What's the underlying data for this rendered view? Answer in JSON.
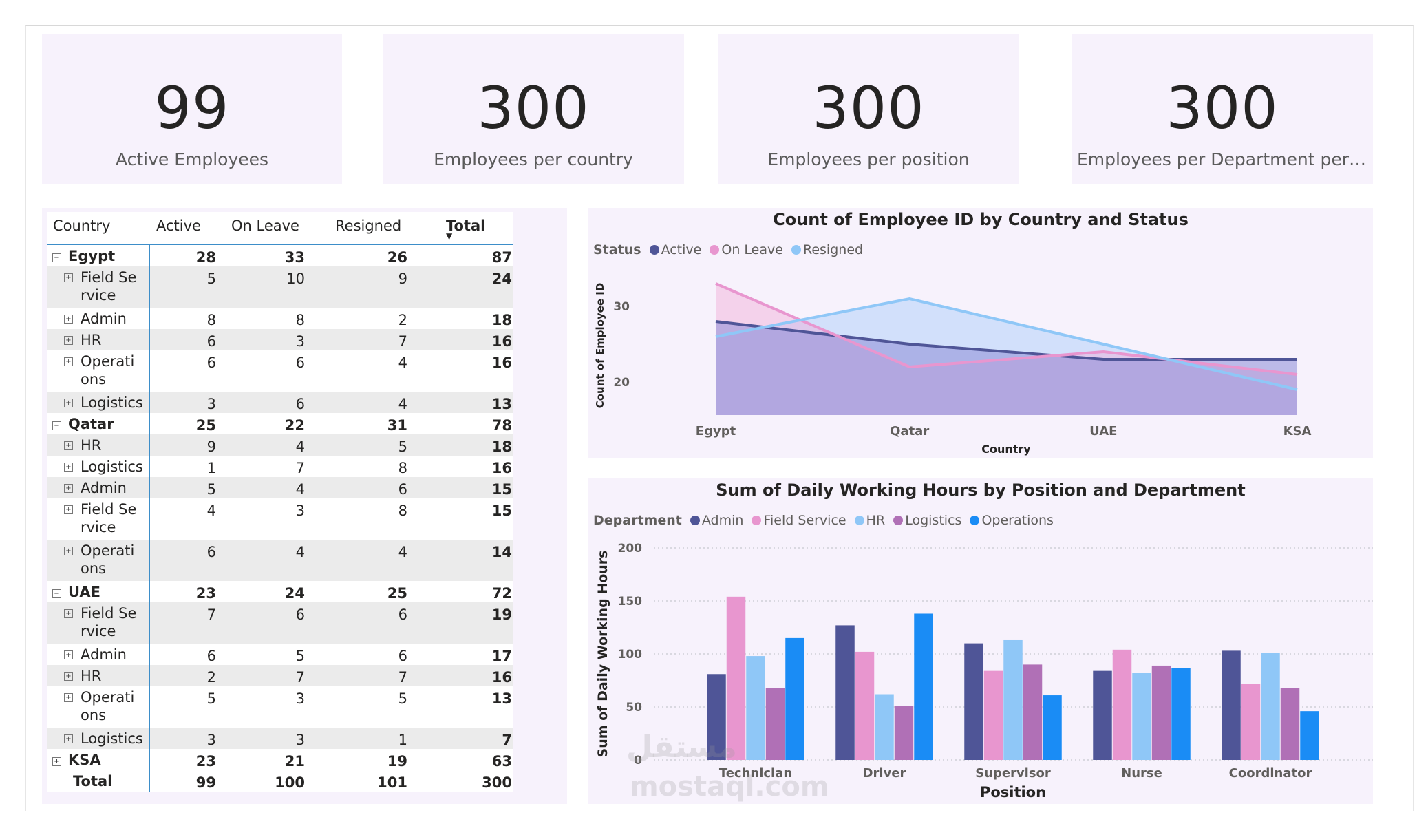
{
  "kpis": [
    {
      "value": "99",
      "label": "Active Employees"
    },
    {
      "value": "300",
      "label": "Employees per country"
    },
    {
      "value": "300",
      "label": "Employees per position"
    },
    {
      "value": "300",
      "label": "Employees per Department per loca..."
    }
  ],
  "matrix": {
    "headers": [
      "Country",
      "Active",
      "On Leave",
      "Resigned",
      "Total"
    ],
    "rows": [
      {
        "type": "group",
        "label": "Egypt",
        "expander": "⊟",
        "active": "28",
        "leave": "33",
        "resigned": "26",
        "total": "87"
      },
      {
        "type": "child",
        "label": "Field Service",
        "active": "5",
        "leave": "10",
        "resigned": "9",
        "total": "24"
      },
      {
        "type": "child",
        "label": "Admin",
        "active": "8",
        "leave": "8",
        "resigned": "2",
        "total": "18"
      },
      {
        "type": "child",
        "label": "HR",
        "active": "6",
        "leave": "3",
        "resigned": "7",
        "total": "16"
      },
      {
        "type": "child",
        "label": "Operations",
        "active": "6",
        "leave": "6",
        "resigned": "4",
        "total": "16"
      },
      {
        "type": "child",
        "label": "Logistics",
        "active": "3",
        "leave": "6",
        "resigned": "4",
        "total": "13"
      },
      {
        "type": "group",
        "label": "Qatar",
        "expander": "⊟",
        "active": "25",
        "leave": "22",
        "resigned": "31",
        "total": "78"
      },
      {
        "type": "child",
        "label": "HR",
        "active": "9",
        "leave": "4",
        "resigned": "5",
        "total": "18"
      },
      {
        "type": "child",
        "label": "Logistics",
        "active": "1",
        "leave": "7",
        "resigned": "8",
        "total": "16"
      },
      {
        "type": "child",
        "label": "Admin",
        "active": "5",
        "leave": "4",
        "resigned": "6",
        "total": "15"
      },
      {
        "type": "child",
        "label": "Field Service",
        "active": "4",
        "leave": "3",
        "resigned": "8",
        "total": "15"
      },
      {
        "type": "child",
        "label": "Operations",
        "active": "6",
        "leave": "4",
        "resigned": "4",
        "total": "14"
      },
      {
        "type": "group",
        "label": "UAE",
        "expander": "⊟",
        "active": "23",
        "leave": "24",
        "resigned": "25",
        "total": "72"
      },
      {
        "type": "child",
        "label": "Field Service",
        "active": "7",
        "leave": "6",
        "resigned": "6",
        "total": "19"
      },
      {
        "type": "child",
        "label": "Admin",
        "active": "6",
        "leave": "5",
        "resigned": "6",
        "total": "17"
      },
      {
        "type": "child",
        "label": "HR",
        "active": "2",
        "leave": "7",
        "resigned": "7",
        "total": "16"
      },
      {
        "type": "child",
        "label": "Operations",
        "active": "5",
        "leave": "3",
        "resigned": "5",
        "total": "13"
      },
      {
        "type": "child",
        "label": "Logistics",
        "active": "3",
        "leave": "3",
        "resigned": "1",
        "total": "7"
      },
      {
        "type": "group",
        "label": "KSA",
        "expander": "⊞",
        "active": "23",
        "leave": "21",
        "resigned": "19",
        "total": "63"
      },
      {
        "type": "total",
        "label": "Total",
        "active": "99",
        "leave": "100",
        "resigned": "101",
        "total": "300"
      }
    ]
  },
  "chart_data": [
    {
      "type": "area",
      "title": "Count of Employee ID by Country and Status",
      "legend_title": "Status",
      "legend_position": "top-left",
      "xlabel": "Country",
      "ylabel": "Count of Employee ID",
      "categories": [
        "Egypt",
        "Qatar",
        "UAE",
        "KSA"
      ],
      "ylim": [
        15,
        35
      ],
      "yticks": [
        20,
        30
      ],
      "grid": false,
      "series": [
        {
          "name": "Active",
          "color": "#4f5597",
          "values": [
            28,
            25,
            23,
            23
          ]
        },
        {
          "name": "On Leave",
          "color": "#e896cf",
          "values": [
            33,
            22,
            24,
            21
          ]
        },
        {
          "name": "Resigned",
          "color": "#8fc7f7",
          "values": [
            26,
            31,
            25,
            19
          ]
        }
      ]
    },
    {
      "type": "bar",
      "title": "Sum of Daily Working Hours by Position and Department",
      "legend_title": "Department",
      "legend_position": "top-left",
      "xlabel": "Position",
      "ylabel": "Sum of Daily Working Hours",
      "categories": [
        "Technician",
        "Driver",
        "Supervisor",
        "Nurse",
        "Coordinator"
      ],
      "ylim": [
        0,
        200
      ],
      "yticks": [
        0,
        50,
        100,
        150,
        200
      ],
      "grid": true,
      "series": [
        {
          "name": "Admin",
          "color": "#4f5597",
          "values": [
            81,
            127,
            110,
            84,
            103
          ]
        },
        {
          "name": "Field Service",
          "color": "#e896cf",
          "values": [
            154,
            102,
            84,
            104,
            72
          ]
        },
        {
          "name": "HR",
          "color": "#8fc7f7",
          "values": [
            98,
            62,
            113,
            82,
            101
          ]
        },
        {
          "name": "Logistics",
          "color": "#b070b6",
          "values": [
            68,
            51,
            90,
            89,
            68
          ]
        },
        {
          "name": "Operations",
          "color": "#1a8cf5",
          "values": [
            115,
            138,
            61,
            87,
            46
          ]
        }
      ]
    }
  ],
  "watermark": {
    "arabic": "مستقل",
    "latin": "mostaql.com"
  }
}
